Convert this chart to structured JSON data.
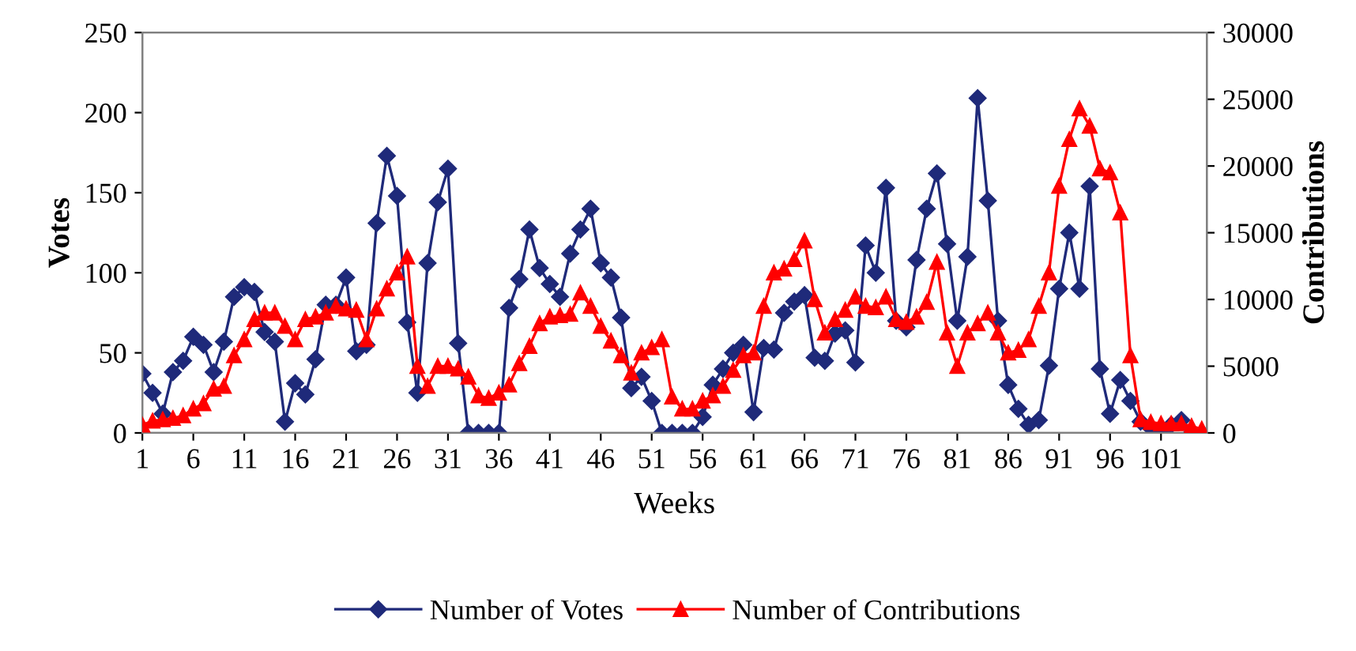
{
  "chart_data": {
    "type": "line",
    "xlabel": "Weeks",
    "ylabel": "Votes",
    "y2label": "Contributions",
    "x": [
      1,
      2,
      3,
      4,
      5,
      6,
      7,
      8,
      9,
      10,
      11,
      12,
      13,
      14,
      15,
      16,
      17,
      18,
      19,
      20,
      21,
      22,
      23,
      24,
      25,
      26,
      27,
      28,
      29,
      30,
      31,
      32,
      33,
      34,
      35,
      36,
      37,
      38,
      39,
      40,
      41,
      42,
      43,
      44,
      45,
      46,
      47,
      48,
      49,
      50,
      51,
      52,
      53,
      54,
      55,
      56,
      57,
      58,
      59,
      60,
      61,
      62,
      63,
      64,
      65,
      66,
      67,
      68,
      69,
      70,
      71,
      72,
      73,
      74,
      75,
      76,
      77,
      78,
      79,
      80,
      81,
      82,
      83,
      84,
      85,
      86,
      87,
      88,
      89,
      90,
      91,
      92,
      93,
      94,
      95,
      96,
      97,
      98,
      99,
      100,
      101,
      102,
      103,
      104,
      105
    ],
    "series": [
      {
        "name": "Number of Votes",
        "color": "#1f2a7a",
        "marker": "diamond",
        "values": [
          37,
          25,
          12,
          38,
          45,
          60,
          55,
          38,
          57,
          85,
          91,
          88,
          63,
          57,
          7,
          31,
          24,
          46,
          80,
          80,
          97,
          51,
          55,
          131,
          173,
          148,
          69,
          25,
          106,
          144,
          165,
          56,
          0,
          0,
          0,
          0,
          78,
          96,
          127,
          103,
          93,
          85,
          112,
          127,
          140,
          106,
          97,
          72,
          28,
          35,
          20,
          0,
          0,
          0,
          0,
          10,
          30,
          40,
          50,
          55,
          13,
          53,
          52,
          75,
          82,
          86,
          47,
          45,
          62,
          64,
          44,
          117,
          100,
          153,
          70,
          66,
          108,
          140,
          162,
          118,
          70,
          110,
          209,
          145,
          70,
          30,
          15,
          5,
          8,
          42,
          90,
          125,
          90,
          154,
          40,
          12,
          33,
          20,
          7,
          3,
          0,
          5,
          8,
          0,
          0
        ]
      },
      {
        "name": "Number of Contributions",
        "color": "#ff0000",
        "marker": "triangle",
        "axis": "y2",
        "values": [
          600,
          900,
          1000,
          1100,
          1300,
          1800,
          2200,
          3300,
          3500,
          5800,
          7000,
          8500,
          9000,
          9000,
          8000,
          7000,
          8500,
          8700,
          9000,
          9500,
          9300,
          9200,
          7000,
          9300,
          10800,
          12000,
          13200,
          5000,
          3500,
          5000,
          5000,
          4800,
          4200,
          2800,
          2600,
          3000,
          3600,
          5200,
          6500,
          8200,
          8700,
          8800,
          8900,
          10500,
          9500,
          8000,
          6900,
          5800,
          4500,
          6000,
          6400,
          7000,
          2700,
          1800,
          1800,
          2400,
          2800,
          3500,
          4700,
          5800,
          6000,
          9500,
          12000,
          12300,
          13000,
          14400,
          10000,
          7500,
          8500,
          9200,
          10200,
          9500,
          9400,
          10200,
          8500,
          8300,
          8700,
          9800,
          12800,
          7500,
          5000,
          7500,
          8200,
          9000,
          7500,
          6000,
          6200,
          7000,
          9500,
          12000,
          18500,
          22000,
          24300,
          23000,
          19800,
          19500,
          16500,
          5800,
          1000,
          800,
          700,
          700,
          700,
          500,
          300
        ]
      }
    ],
    "xlim": [
      1,
      105.5
    ],
    "xticks": [
      1,
      6,
      11,
      16,
      21,
      26,
      31,
      36,
      41,
      46,
      51,
      56,
      61,
      66,
      71,
      76,
      81,
      86,
      91,
      96,
      101
    ],
    "ylim": [
      0,
      250
    ],
    "yticks": [
      0,
      50,
      100,
      150,
      200,
      250
    ],
    "y2lim": [
      0,
      30000
    ],
    "y2ticks": [
      0,
      5000,
      10000,
      15000,
      20000,
      25000,
      30000
    ],
    "legend": "bottom",
    "grid": false
  }
}
